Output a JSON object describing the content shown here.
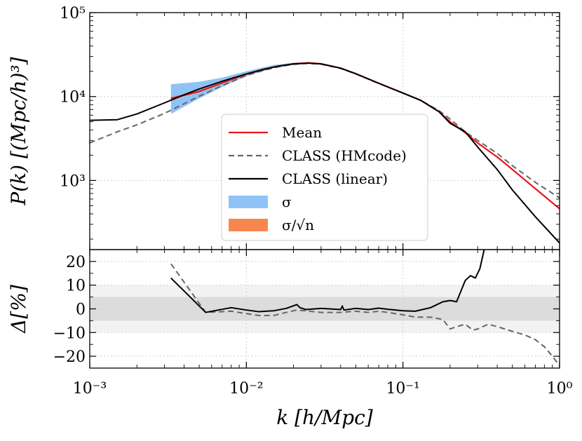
{
  "chart_data": [
    {
      "type": "line",
      "panel": "top",
      "xscale": "log",
      "yscale": "log",
      "xlim": [
        0.001,
        1.0
      ],
      "ylim": [
        150,
        100000
      ],
      "ylabel": "P(k) [(Mpc/h)³]",
      "x_ticks": [
        "10⁻³",
        "10⁻²",
        "10⁻¹",
        "10⁰"
      ],
      "y_ticks": [
        {
          "value": 1000,
          "label": "10³"
        },
        {
          "value": 10000,
          "label": "10⁴"
        },
        {
          "value": 100000,
          "label": "10⁵"
        }
      ],
      "grid": true,
      "legend_placement": "center-right",
      "legend": [
        {
          "label": "Mean",
          "style": "line",
          "color": "#e8161b"
        },
        {
          "label": "CLASS (HMcode)",
          "style": "dashed",
          "color": "#666666"
        },
        {
          "label": "CLASS (linear)",
          "style": "line",
          "color": "#000000"
        },
        {
          "label": "σ",
          "style": "patch",
          "color": "#8fc3f5"
        },
        {
          "label": "σ/√n",
          "style": "patch",
          "color": "#f6884f"
        }
      ],
      "series": [
        {
          "name": "CLASS (linear)",
          "color": "#000000",
          "x": [
            0.001,
            0.0015,
            0.002,
            0.003,
            0.004,
            0.005,
            0.007,
            0.01,
            0.013,
            0.016,
            0.02,
            0.025,
            0.03,
            0.04,
            0.05,
            0.07,
            0.1,
            0.13,
            0.17,
            0.2,
            0.25,
            0.3,
            0.4,
            0.5,
            0.7,
            1.0
          ],
          "y": [
            5200,
            5300,
            6200,
            8400,
            10500,
            12300,
            15200,
            18600,
            21200,
            23000,
            24500,
            25000,
            24500,
            21800,
            18700,
            14400,
            11000,
            9000,
            6600,
            4800,
            3800,
            2500,
            1350,
            770,
            370,
            180
          ]
        },
        {
          "name": "CLASS (HMcode)",
          "color": "#666666",
          "x": [
            0.001,
            0.0015,
            0.002,
            0.003,
            0.004,
            0.005,
            0.007,
            0.01,
            0.013,
            0.016,
            0.02,
            0.025,
            0.03,
            0.04,
            0.05,
            0.07,
            0.1,
            0.13,
            0.17,
            0.2,
            0.25,
            0.3,
            0.4,
            0.5,
            0.7,
            1.0
          ],
          "y": [
            2800,
            3800,
            4600,
            6300,
            8200,
            10100,
            13500,
            17800,
            20600,
            22600,
            24200,
            24800,
            24300,
            21600,
            18600,
            14300,
            11000,
            9000,
            6800,
            5400,
            3800,
            3000,
            2100,
            1500,
            950,
            620
          ]
        },
        {
          "name": "Mean",
          "color": "#e8161b",
          "x": [
            0.0033,
            0.005,
            0.007,
            0.01,
            0.015,
            0.02,
            0.025,
            0.03,
            0.04,
            0.05,
            0.07,
            0.1,
            0.13,
            0.17,
            0.2,
            0.25,
            0.3,
            0.4,
            0.5,
            0.7,
            1.0
          ],
          "y": [
            9500,
            11500,
            14500,
            18500,
            22500,
            24500,
            25200,
            24500,
            21800,
            18700,
            14400,
            11000,
            9000,
            6600,
            5000,
            3700,
            2800,
            1900,
            1350,
            800,
            460
          ]
        },
        {
          "name": "σ",
          "type": "band",
          "color": "#8fc3f5",
          "x": [
            0.0033,
            0.005,
            0.007,
            0.01,
            0.015,
            0.02,
            0.025
          ],
          "y_low": [
            6200,
            9500,
            13000,
            17500,
            22000,
            24000,
            25000
          ],
          "y_high": [
            14000,
            15000,
            16800,
            20000,
            23800,
            25300,
            25600
          ]
        },
        {
          "name": "σ/√n",
          "type": "band",
          "color": "#f6884f",
          "x": [
            0.0033,
            0.005,
            0.007,
            0.01,
            0.015,
            0.02,
            0.025
          ],
          "y_low": [
            9200,
            11200,
            14200,
            18200,
            22200,
            24300,
            25000
          ],
          "y_high": [
            9800,
            11800,
            14800,
            18800,
            22800,
            24800,
            25400
          ]
        }
      ]
    },
    {
      "type": "line",
      "panel": "bottom",
      "xscale": "log",
      "xlim": [
        0.001,
        1.0
      ],
      "ylim": [
        -25,
        25
      ],
      "xlabel": "k [h/Mpc]",
      "ylabel": "Δ[%]",
      "y_ticks": [
        {
          "value": 20,
          "label": "20"
        },
        {
          "value": 10,
          "label": "10"
        },
        {
          "value": 0,
          "label": "0"
        },
        {
          "value": -10,
          "label": "−10"
        },
        {
          "value": -20,
          "label": "−20"
        }
      ],
      "bands": [
        {
          "y_low": -10,
          "y_high": 10,
          "color": "#f2f2f2"
        },
        {
          "y_low": -5,
          "y_high": 5,
          "color": "#dcdcdc"
        }
      ],
      "series": [
        {
          "name": "CLASS (linear)",
          "color": "#000000",
          "x": [
            0.0033,
            0.0055,
            0.008,
            0.01,
            0.012,
            0.015,
            0.018,
            0.021,
            0.022,
            0.024,
            0.03,
            0.04,
            0.041,
            0.042,
            0.05,
            0.06,
            0.07,
            0.08,
            0.1,
            0.12,
            0.15,
            0.18,
            0.2,
            0.22,
            0.25,
            0.27,
            0.29,
            0.31,
            0.33
          ],
          "y": [
            13,
            -1.5,
            0.5,
            -0.5,
            -1.2,
            -0.8,
            0.2,
            1.8,
            0.5,
            -0.3,
            0.2,
            -0.3,
            1.2,
            -0.5,
            0.2,
            -0.3,
            0.3,
            -0.2,
            -0.8,
            -1,
            0.5,
            3,
            3.5,
            3,
            12,
            14,
            13,
            17,
            25
          ]
        },
        {
          "name": "CLASS (HMcode)",
          "color": "#666666",
          "x": [
            0.0033,
            0.0055,
            0.008,
            0.01,
            0.012,
            0.015,
            0.018,
            0.021,
            0.025,
            0.03,
            0.04,
            0.05,
            0.06,
            0.07,
            0.08,
            0.1,
            0.12,
            0.15,
            0.18,
            0.2,
            0.22,
            0.25,
            0.28,
            0.3,
            0.35,
            0.4,
            0.5,
            0.6,
            0.7,
            0.8,
            0.9,
            1.0
          ],
          "y": [
            19,
            -1.5,
            -1,
            -2,
            -2.8,
            -2.8,
            -1.5,
            -0.5,
            -1,
            -1.5,
            -1.5,
            -1,
            -1.5,
            -1,
            -1.5,
            -2.5,
            -3.5,
            -3.5,
            -4.5,
            -8.5,
            -7.5,
            -6.5,
            -9,
            -8.5,
            -6.5,
            -7.5,
            -9.5,
            -11,
            -13,
            -16,
            -20,
            -24
          ]
        }
      ]
    }
  ]
}
